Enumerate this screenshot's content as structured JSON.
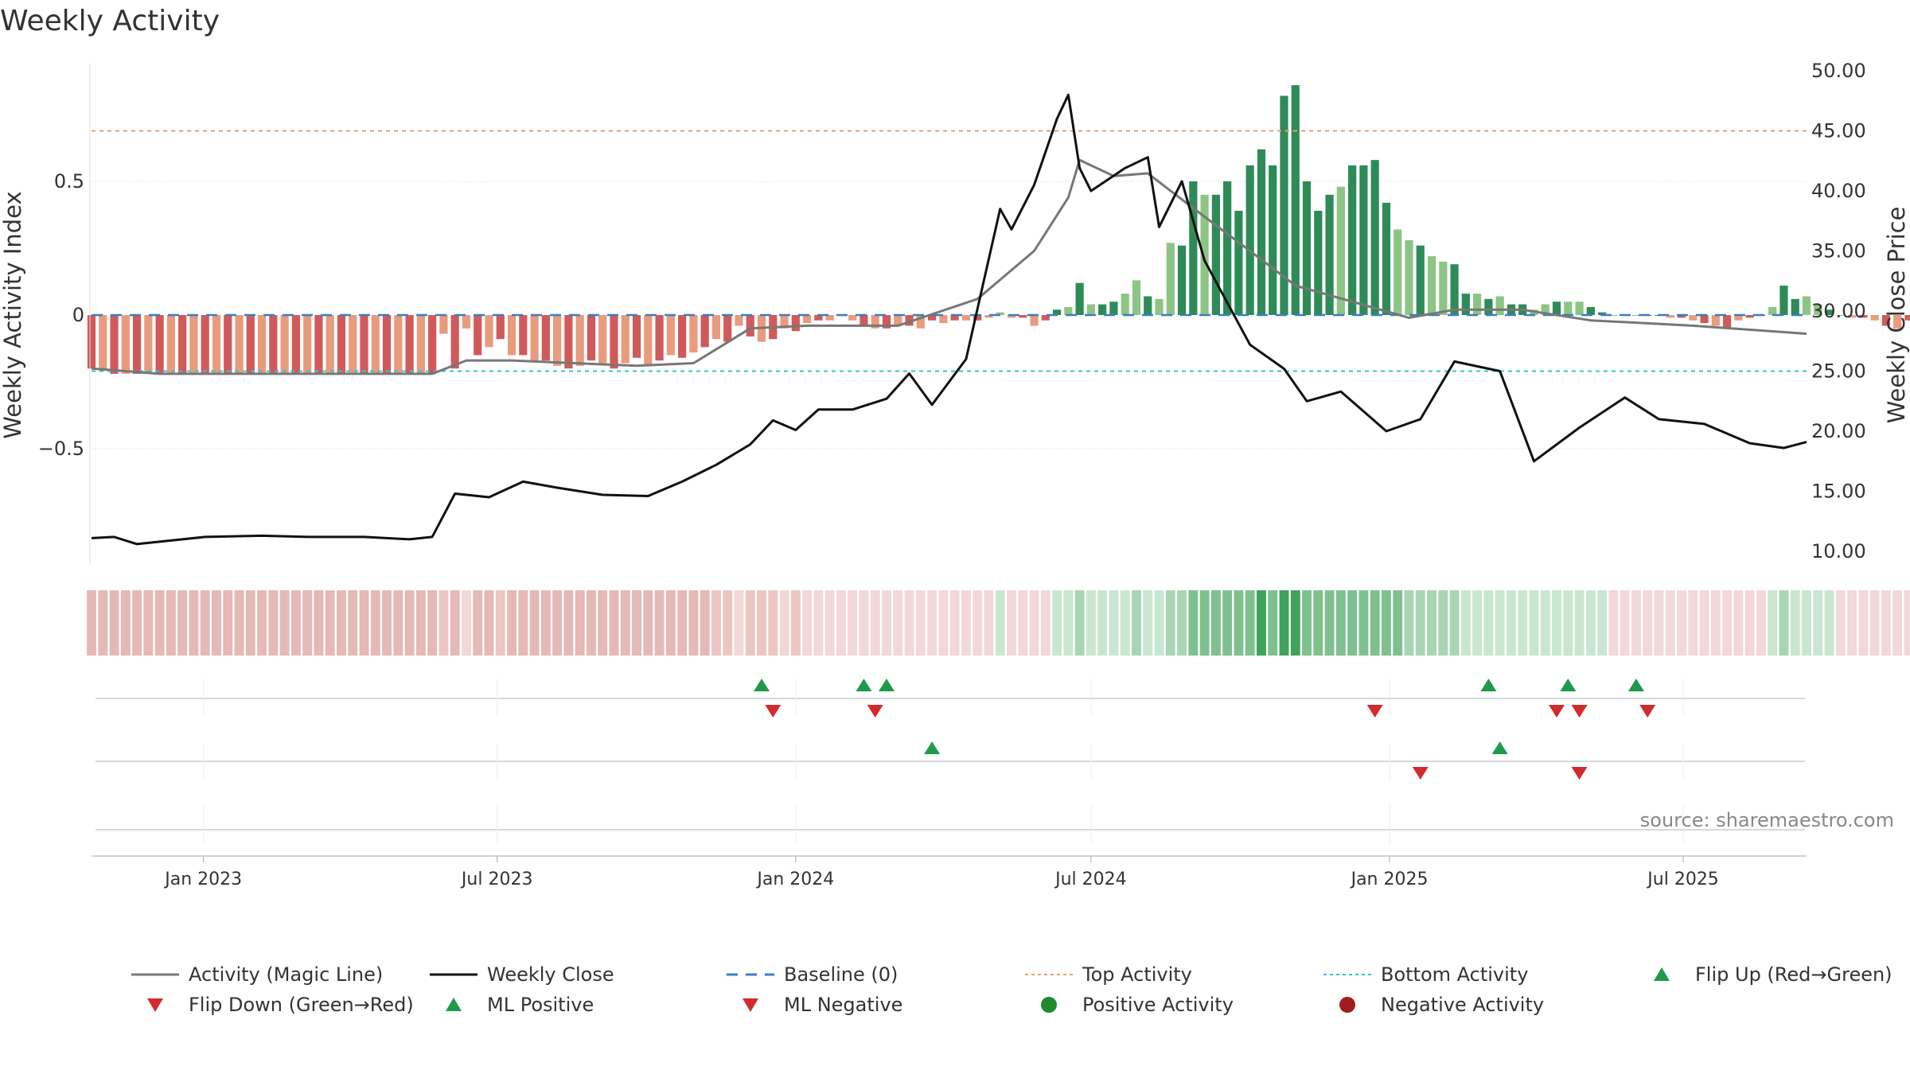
{
  "chart_data": {
    "type": "bar",
    "title": "Weekly Activity",
    "ylabel_left": "Weekly Activity Index",
    "ylabel_right": "Weekly Close Price",
    "left_ticks": [
      "0.5",
      "0",
      "−0.5"
    ],
    "right_ticks": [
      "50.00",
      "45.00",
      "40.00",
      "35.00",
      "30.00",
      "25.00",
      "20.00",
      "15.00",
      "10.00"
    ],
    "ylim_left": [
      -0.95,
      0.95
    ],
    "ylim_right": [
      9.0,
      51.0
    ],
    "x_range": [
      "2022-10-24",
      "2025-09-15"
    ],
    "x_ticks": [
      {
        "date": "2023-01-01",
        "label": "Jan 2023"
      },
      {
        "date": "2023-07-01",
        "label": "Jul 2023"
      },
      {
        "date": "2024-01-01",
        "label": "Jan 2024"
      },
      {
        "date": "2024-07-01",
        "label": "Jul 2024"
      },
      {
        "date": "2025-01-01",
        "label": "Jan 2025"
      },
      {
        "date": "2025-07-01",
        "label": "Jul 2025"
      }
    ],
    "week_start": "2022-10-24",
    "activity_index_weekly": [
      -0.2,
      -0.2,
      -0.22,
      -0.22,
      -0.22,
      -0.22,
      -0.22,
      -0.22,
      -0.22,
      -0.22,
      -0.22,
      -0.22,
      -0.22,
      -0.22,
      -0.22,
      -0.22,
      -0.22,
      -0.22,
      -0.22,
      -0.22,
      -0.22,
      -0.22,
      -0.22,
      -0.22,
      -0.22,
      -0.22,
      -0.22,
      -0.22,
      -0.22,
      -0.22,
      -0.22,
      -0.07,
      -0.2,
      -0.05,
      -0.15,
      -0.12,
      -0.09,
      -0.15,
      -0.15,
      -0.17,
      -0.17,
      -0.19,
      -0.2,
      -0.19,
      -0.17,
      -0.18,
      -0.2,
      -0.18,
      -0.16,
      -0.19,
      -0.17,
      -0.15,
      -0.16,
      -0.14,
      -0.12,
      -0.09,
      -0.1,
      -0.04,
      -0.08,
      -0.1,
      -0.09,
      -0.05,
      -0.06,
      -0.03,
      -0.02,
      -0.02,
      0,
      -0.02,
      -0.04,
      -0.05,
      -0.05,
      -0.04,
      -0.04,
      -0.05,
      -0.02,
      -0.03,
      -0.02,
      -0.02,
      -0.02,
      -0.01,
      0.01,
      -0.01,
      -0.01,
      -0.04,
      -0.02,
      0.02,
      0.03,
      0.12,
      0.04,
      0.04,
      0.05,
      0.08,
      0.13,
      0.07,
      0.06,
      0.27,
      0.26,
      0.5,
      0.45,
      0.45,
      0.5,
      0.39,
      0.56,
      0.62,
      0.56,
      0.82,
      0.86,
      0.5,
      0.39,
      0.45,
      0.48,
      0.56,
      0.56,
      0.58,
      0.42,
      0.32,
      0.28,
      0.26,
      0.22,
      0.2,
      0.19,
      0.08,
      0.08,
      0.06,
      0.07,
      0.04,
      0.04,
      0.02,
      0.04,
      0.05,
      0.05,
      0.05,
      0.03,
      0.01,
      0,
      0,
      0,
      0,
      0,
      -0.01,
      -0.01,
      -0.02,
      -0.03,
      -0.04,
      -0.05,
      -0.02,
      -0.01,
      0,
      0.03,
      0.11,
      0.06,
      0.07,
      0.04,
      0.02,
      0,
      -0.01,
      -0.01,
      -0.02,
      -0.04,
      -0.05,
      -0.02,
      -0.04,
      -0.04,
      -0.05,
      -0.05,
      -0.02,
      -0.01,
      0.02,
      0.01,
      -0.02,
      -0.04,
      -0.05,
      -0.06,
      -0.06,
      -0.06,
      -0.05,
      -0.05,
      -0.06,
      -0.06,
      -0.07,
      -0.06,
      -0.06,
      -0.07,
      -0.08
    ],
    "magic_line": [
      [
        "2022-10-24",
        -0.2
      ],
      [
        "2022-12-05",
        -0.22
      ],
      [
        "2023-05-22",
        -0.22
      ],
      [
        "2023-06-12",
        -0.17
      ],
      [
        "2023-07-10",
        -0.17
      ],
      [
        "2023-09-25",
        -0.19
      ],
      [
        "2023-10-30",
        -0.18
      ],
      [
        "2023-12-04",
        -0.05
      ],
      [
        "2024-01-08",
        -0.04
      ],
      [
        "2024-03-04",
        -0.04
      ],
      [
        "2024-04-22",
        0.06
      ],
      [
        "2024-05-27",
        0.24
      ],
      [
        "2024-06-17",
        0.44
      ],
      [
        "2024-06-24",
        0.58
      ],
      [
        "2024-07-15",
        0.52
      ],
      [
        "2024-08-05",
        0.53
      ],
      [
        "2024-09-02",
        0.4
      ],
      [
        "2024-10-07",
        0.24
      ],
      [
        "2024-11-04",
        0.11
      ],
      [
        "2024-12-09",
        0.05
      ],
      [
        "2025-01-13",
        -0.01
      ],
      [
        "2025-02-10",
        0.02
      ],
      [
        "2025-03-24",
        0.02
      ],
      [
        "2025-05-05",
        -0.02
      ],
      [
        "2025-07-07",
        -0.04
      ],
      [
        "2025-09-15",
        -0.07
      ]
    ],
    "weekly_close": [
      [
        "2022-10-24",
        11.1
      ],
      [
        "2022-11-07",
        11.2
      ],
      [
        "2022-11-21",
        10.6
      ],
      [
        "2022-12-12",
        10.9
      ],
      [
        "2023-01-02",
        11.2
      ],
      [
        "2023-02-06",
        11.3
      ],
      [
        "2023-03-06",
        11.2
      ],
      [
        "2023-04-10",
        11.2
      ],
      [
        "2023-05-08",
        11.0
      ],
      [
        "2023-05-22",
        11.2
      ],
      [
        "2023-06-05",
        14.8
      ],
      [
        "2023-06-26",
        14.5
      ],
      [
        "2023-07-17",
        15.8
      ],
      [
        "2023-08-07",
        15.3
      ],
      [
        "2023-09-04",
        14.7
      ],
      [
        "2023-10-02",
        14.6
      ],
      [
        "2023-10-23",
        15.8
      ],
      [
        "2023-11-13",
        17.2
      ],
      [
        "2023-12-04",
        18.9
      ],
      [
        "2023-12-18",
        20.9
      ],
      [
        "2024-01-01",
        20.1
      ],
      [
        "2024-01-15",
        21.8
      ],
      [
        "2024-02-05",
        21.8
      ],
      [
        "2024-02-26",
        22.7
      ],
      [
        "2024-03-11",
        24.8
      ],
      [
        "2024-03-25",
        22.2
      ],
      [
        "2024-04-15",
        26.0
      ],
      [
        "2024-05-06",
        38.5
      ],
      [
        "2024-05-13",
        36.8
      ],
      [
        "2024-05-27",
        40.5
      ],
      [
        "2024-06-10",
        46.0
      ],
      [
        "2024-06-17",
        48.0
      ],
      [
        "2024-06-24",
        41.9
      ],
      [
        "2024-07-01",
        40.0
      ],
      [
        "2024-07-22",
        41.9
      ],
      [
        "2024-08-05",
        42.8
      ],
      [
        "2024-08-12",
        37.0
      ],
      [
        "2024-08-26",
        40.8
      ],
      [
        "2024-09-09",
        34.2
      ],
      [
        "2024-10-07",
        27.2
      ],
      [
        "2024-10-28",
        25.2
      ],
      [
        "2024-11-11",
        22.5
      ],
      [
        "2024-12-02",
        23.3
      ],
      [
        "2024-12-30",
        20.0
      ],
      [
        "2025-01-20",
        21.0
      ],
      [
        "2025-02-10",
        25.8
      ],
      [
        "2025-03-10",
        25.0
      ],
      [
        "2025-03-31",
        17.5
      ],
      [
        "2025-04-28",
        20.3
      ],
      [
        "2025-05-26",
        22.8
      ],
      [
        "2025-06-16",
        21.0
      ],
      [
        "2025-07-14",
        20.6
      ],
      [
        "2025-08-11",
        19.0
      ],
      [
        "2025-09-01",
        18.6
      ],
      [
        "2025-09-15",
        19.1
      ]
    ],
    "flip_up_row1": [
      "2023-12-11",
      "2024-02-12",
      "2024-02-26",
      "2025-03-03",
      "2025-04-21",
      "2025-06-02"
    ],
    "flip_down_row1": [
      "2023-12-18",
      "2024-02-19",
      "2024-12-23",
      "2025-04-14",
      "2025-04-28",
      "2025-06-09"
    ],
    "ml_positive_row2": [
      "2024-03-25",
      "2025-03-10"
    ],
    "ml_negative_row2": [
      "2025-01-20",
      "2025-04-28"
    ],
    "source": "source: sharemaestro.com",
    "legend": [
      {
        "label": "Activity (Magic Line)",
        "marker": "line",
        "color": "#777777"
      },
      {
        "label": "Weekly Close",
        "marker": "line",
        "color": "#111111"
      },
      {
        "label": "Baseline (0)",
        "marker": "dashed",
        "color": "#3B7DC4"
      },
      {
        "label": "Top Activity",
        "marker": "dotted",
        "color": "#E8A06A"
      },
      {
        "label": "Bottom Activity",
        "marker": "dotted",
        "color": "#2FC6D6"
      },
      {
        "label": "Flip Up (Red→Green)",
        "marker": "triangle-up",
        "color": "#1E9A4A"
      },
      {
        "label": "Flip Down (Green→Red)",
        "marker": "triangle-down",
        "color": "#D22B2B"
      },
      {
        "label": "ML Positive",
        "marker": "triangle-up",
        "color": "#1E9A4A"
      },
      {
        "label": "ML Negative",
        "marker": "triangle-down",
        "color": "#D22B2B"
      },
      {
        "label": "Positive Activity",
        "marker": "circle",
        "color": "#1F8A2E"
      },
      {
        "label": "Negative Activity",
        "marker": "circle",
        "color": "#A11D1D"
      }
    ],
    "top_activity_price": 45.0,
    "bottom_activity_price": 25.0,
    "colors": {
      "pos_dark": "#2E8B57",
      "pos_light": "#8CC584",
      "neg_dark": "#D05A5A",
      "neg_light": "#E89B7D",
      "line_magic": "#777777",
      "line_close": "#111111",
      "baseline": "#3B7DC4",
      "top": "#E8A06A",
      "bottom": "#2FC6D6"
    }
  }
}
